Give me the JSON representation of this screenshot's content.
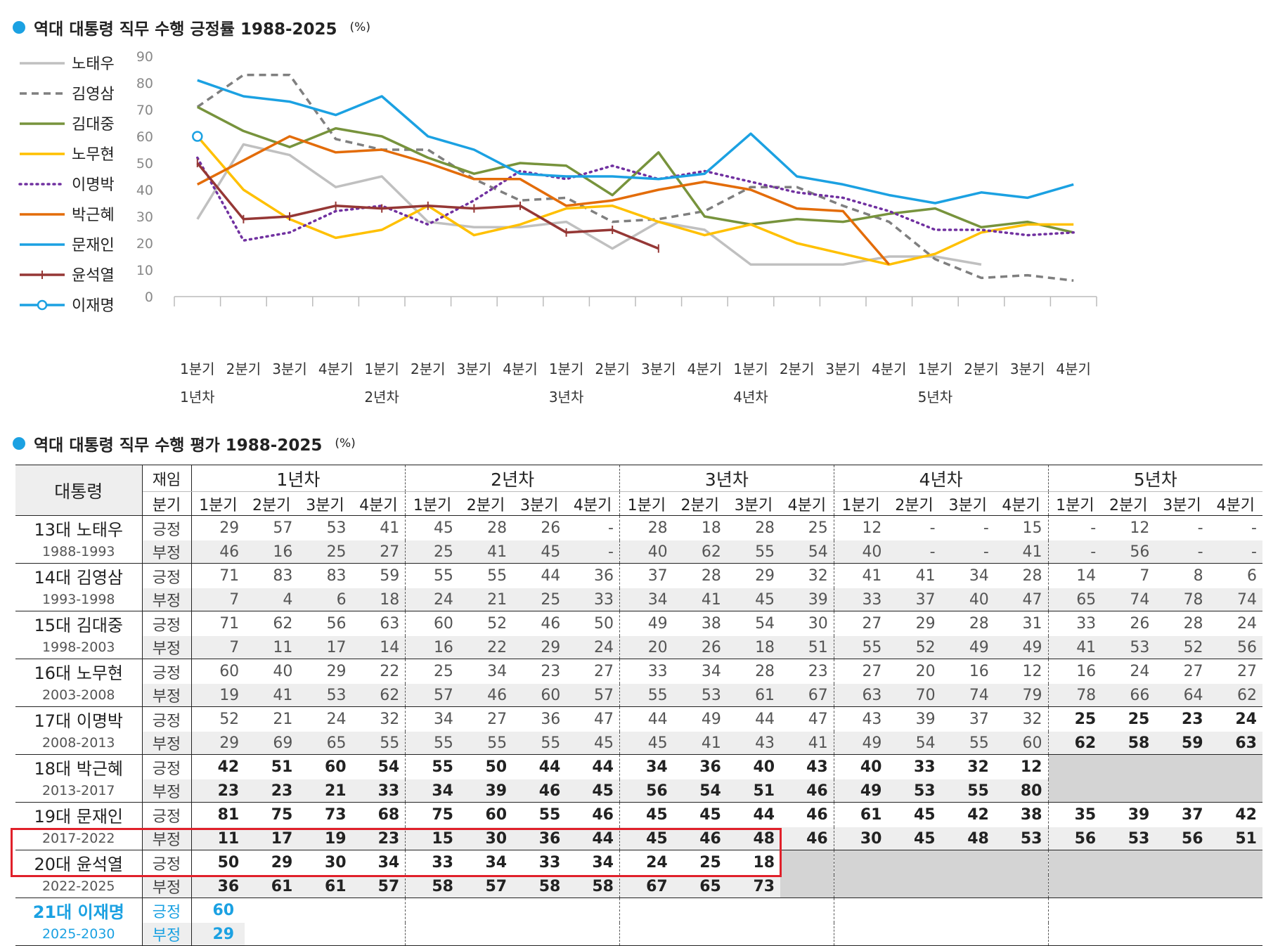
{
  "chart_data": {
    "type": "line",
    "title": "역대 대통령 직무 수행 긍정률 1988-2025",
    "unit": "(%)",
    "ylim": [
      0,
      90
    ],
    "yticks": [
      0,
      10,
      20,
      30,
      40,
      50,
      60,
      70,
      80,
      90
    ],
    "categories": [
      "1분기",
      "2분기",
      "3분기",
      "4분기",
      "1분기",
      "2분기",
      "3분기",
      "4분기",
      "1분기",
      "2분기",
      "3분기",
      "4분기",
      "1분기",
      "2분기",
      "3분기",
      "4분기",
      "1분기",
      "2분기",
      "3분기",
      "4분기"
    ],
    "year_labels": [
      {
        "index": 0,
        "label": "1년차"
      },
      {
        "index": 4,
        "label": "2년차"
      },
      {
        "index": 8,
        "label": "3년차"
      },
      {
        "index": 12,
        "label": "4년차"
      },
      {
        "index": 16,
        "label": "5년차"
      }
    ],
    "series": [
      {
        "name": "노태우",
        "color": "#c0c0c0",
        "style": "solid",
        "values": [
          29,
          57,
          53,
          41,
          45,
          28,
          26,
          26,
          28,
          18,
          28,
          25,
          12,
          12,
          12,
          15,
          15,
          12,
          null,
          null
        ]
      },
      {
        "name": "김영삼",
        "color": "#7f7f7f",
        "style": "dashed",
        "values": [
          71,
          83,
          83,
          59,
          55,
          55,
          44,
          36,
          37,
          28,
          29,
          32,
          41,
          41,
          34,
          28,
          14,
          7,
          8,
          6
        ]
      },
      {
        "name": "김대중",
        "color": "#77933c",
        "style": "solid",
        "values": [
          71,
          62,
          56,
          63,
          60,
          52,
          46,
          50,
          49,
          38,
          54,
          30,
          27,
          29,
          28,
          31,
          33,
          26,
          28,
          24
        ]
      },
      {
        "name": "노무현",
        "color": "#ffc000",
        "style": "solid",
        "values": [
          60,
          40,
          29,
          22,
          25,
          34,
          23,
          27,
          33,
          34,
          28,
          23,
          27,
          20,
          16,
          12,
          16,
          24,
          27,
          27
        ]
      },
      {
        "name": "이명박",
        "color": "#7030a0",
        "style": "dotted",
        "values": [
          52,
          21,
          24,
          32,
          34,
          27,
          36,
          47,
          44,
          49,
          44,
          47,
          43,
          39,
          37,
          32,
          25,
          25,
          23,
          24
        ]
      },
      {
        "name": "박근혜",
        "color": "#e36c09",
        "style": "solid",
        "values": [
          42,
          51,
          60,
          54,
          55,
          50,
          44,
          44,
          34,
          36,
          40,
          43,
          40,
          33,
          32,
          12,
          null,
          null,
          null,
          null
        ]
      },
      {
        "name": "문재인",
        "color": "#1ba1e2",
        "style": "solid",
        "values": [
          81,
          75,
          73,
          68,
          75,
          60,
          55,
          46,
          45,
          45,
          44,
          46,
          61,
          45,
          42,
          38,
          35,
          39,
          37,
          42
        ]
      },
      {
        "name": "윤석열",
        "color": "#953735",
        "style": "plus",
        "values": [
          50,
          29,
          30,
          34,
          33,
          34,
          33,
          34,
          24,
          25,
          18,
          null,
          null,
          null,
          null,
          null,
          null,
          null,
          null,
          null
        ]
      },
      {
        "name": "이재명",
        "color": "#1ba1e2",
        "style": "circle",
        "values": [
          60,
          null,
          null,
          null,
          null,
          null,
          null,
          null,
          null,
          null,
          null,
          null,
          null,
          null,
          null,
          null,
          null,
          null,
          null,
          null
        ]
      }
    ]
  },
  "table": {
    "title": "역대 대통령 직무 수행 평가 1988-2025",
    "unit": "(%)",
    "header_president": "대통령",
    "header_term": "재임",
    "header_quarter": "분기",
    "years": [
      "1년차",
      "2년차",
      "3년차",
      "4년차",
      "5년차"
    ],
    "quarters": [
      "1분기",
      "2분기",
      "3분기",
      "4분기",
      "1분기",
      "2분기",
      "3분기",
      "4분기",
      "1분기",
      "2분기",
      "3분기",
      "4분기",
      "1분기",
      "2분기",
      "3분기",
      "4분기",
      "1분기",
      "2분기",
      "3분기",
      "4분기"
    ],
    "pos_label": "긍정",
    "neg_label": "부정",
    "presidents": [
      {
        "name": "13대 노태우",
        "years": "1988-1993",
        "pos": [
          "29",
          "57",
          "53",
          "41",
          "45",
          "28",
          "26",
          "-",
          "28",
          "18",
          "28",
          "25",
          "12",
          "-",
          "-",
          "15",
          "-",
          "12",
          "-",
          "-"
        ],
        "neg": [
          "46",
          "16",
          "25",
          "27",
          "25",
          "41",
          "45",
          "-",
          "40",
          "62",
          "55",
          "54",
          "40",
          "-",
          "-",
          "41",
          "-",
          "56",
          "-",
          "-"
        ]
      },
      {
        "name": "14대 김영삼",
        "years": "1993-1998",
        "pos": [
          "71",
          "83",
          "83",
          "59",
          "55",
          "55",
          "44",
          "36",
          "37",
          "28",
          "29",
          "32",
          "41",
          "41",
          "34",
          "28",
          "14",
          "7",
          "8",
          "6"
        ],
        "neg": [
          "7",
          "4",
          "6",
          "18",
          "24",
          "21",
          "25",
          "33",
          "34",
          "41",
          "45",
          "39",
          "33",
          "37",
          "40",
          "47",
          "65",
          "74",
          "78",
          "74"
        ]
      },
      {
        "name": "15대 김대중",
        "years": "1998-2003",
        "pos": [
          "71",
          "62",
          "56",
          "63",
          "60",
          "52",
          "46",
          "50",
          "49",
          "38",
          "54",
          "30",
          "27",
          "29",
          "28",
          "31",
          "33",
          "26",
          "28",
          "24"
        ],
        "neg": [
          "7",
          "11",
          "17",
          "14",
          "16",
          "22",
          "29",
          "24",
          "20",
          "26",
          "18",
          "51",
          "55",
          "52",
          "49",
          "49",
          "41",
          "53",
          "52",
          "56"
        ]
      },
      {
        "name": "16대 노무현",
        "years": "2003-2008",
        "pos": [
          "60",
          "40",
          "29",
          "22",
          "25",
          "34",
          "23",
          "27",
          "33",
          "34",
          "28",
          "23",
          "27",
          "20",
          "16",
          "12",
          "16",
          "24",
          "27",
          "27"
        ],
        "neg": [
          "19",
          "41",
          "53",
          "62",
          "57",
          "46",
          "60",
          "57",
          "55",
          "53",
          "61",
          "67",
          "63",
          "70",
          "74",
          "79",
          "78",
          "66",
          "64",
          "62"
        ]
      },
      {
        "name": "17대 이명박",
        "years": "2008-2013",
        "pos": [
          "52",
          "21",
          "24",
          "32",
          "34",
          "27",
          "36",
          "47",
          "44",
          "49",
          "44",
          "47",
          "43",
          "39",
          "37",
          "32",
          "25",
          "25",
          "23",
          "24"
        ],
        "neg": [
          "29",
          "69",
          "65",
          "55",
          "55",
          "55",
          "55",
          "45",
          "45",
          "41",
          "43",
          "41",
          "49",
          "54",
          "55",
          "60",
          "62",
          "58",
          "59",
          "63"
        ]
      },
      {
        "name": "18대 박근혜",
        "years": "2013-2017",
        "pos": [
          "42",
          "51",
          "60",
          "54",
          "55",
          "50",
          "44",
          "44",
          "34",
          "36",
          "40",
          "43",
          "40",
          "33",
          "32",
          "12",
          "",
          "",
          "",
          ""
        ],
        "neg": [
          "23",
          "23",
          "21",
          "33",
          "34",
          "39",
          "46",
          "45",
          "56",
          "54",
          "51",
          "46",
          "49",
          "53",
          "55",
          "80",
          "",
          "",
          "",
          ""
        ]
      },
      {
        "name": "19대 문재인",
        "years": "2017-2022",
        "pos": [
          "81",
          "75",
          "73",
          "68",
          "75",
          "60",
          "55",
          "46",
          "45",
          "45",
          "44",
          "46",
          "61",
          "45",
          "42",
          "38",
          "35",
          "39",
          "37",
          "42"
        ],
        "neg": [
          "11",
          "17",
          "19",
          "23",
          "15",
          "30",
          "36",
          "44",
          "45",
          "46",
          "48",
          "46",
          "30",
          "45",
          "48",
          "53",
          "56",
          "53",
          "56",
          "51"
        ]
      },
      {
        "name": "20대 윤석열",
        "years": "2022-2025",
        "pos": [
          "50",
          "29",
          "30",
          "34",
          "33",
          "34",
          "33",
          "34",
          "24",
          "25",
          "18",
          "",
          "",
          "",
          "",
          "",
          "",
          "",
          "",
          ""
        ],
        "neg": [
          "36",
          "61",
          "61",
          "57",
          "58",
          "57",
          "58",
          "58",
          "67",
          "65",
          "73",
          "",
          "",
          "",
          "",
          "",
          "",
          "",
          "",
          ""
        ]
      },
      {
        "name": "21대 이재명",
        "years": "2025-2030",
        "pos": [
          "60",
          "",
          "",
          "",
          "",
          "",
          "",
          "",
          "",
          "",
          "",
          "",
          "",
          "",
          "",
          "",
          "",
          "",
          "",
          ""
        ],
        "neg": [
          "29",
          "",
          "",
          "",
          "",
          "",
          "",
          "",
          "",
          "",
          "",
          "",
          "",
          "",
          "",
          "",
          "",
          "",
          "",
          ""
        ]
      }
    ]
  }
}
